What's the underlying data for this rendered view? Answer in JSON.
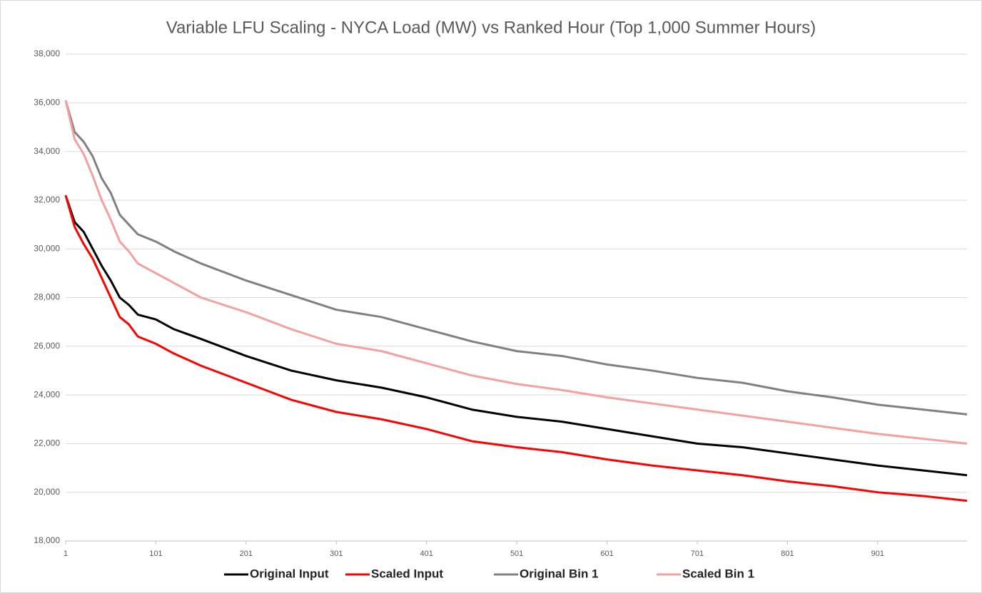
{
  "chart_data": {
    "type": "line",
    "title": "Variable LFU Scaling - NYCA Load (MW) vs Ranked Hour (Top 1,000 Summer Hours)",
    "x": [
      1,
      11,
      21,
      31,
      41,
      51,
      61,
      71,
      81,
      101,
      121,
      151,
      201,
      251,
      301,
      351,
      401,
      451,
      501,
      551,
      601,
      651,
      701,
      751,
      801,
      851,
      901,
      951,
      1000
    ],
    "series": [
      {
        "name": "Original Input",
        "color": "#000000",
        "values": [
          32200,
          31100,
          30700,
          30000,
          29300,
          28700,
          28000,
          27700,
          27300,
          27100,
          26700,
          26300,
          25600,
          25000,
          24600,
          24300,
          23900,
          23400,
          23100,
          22900,
          22600,
          22300,
          22000,
          21850,
          21600,
          21350,
          21100,
          20900,
          20700
        ]
      },
      {
        "name": "Scaled Input",
        "color": "#ff0000",
        "values": [
          32200,
          30900,
          30200,
          29600,
          28800,
          28000,
          27200,
          26900,
          26400,
          26100,
          25700,
          25200,
          24500,
          23800,
          23300,
          23000,
          22600,
          22100,
          21850,
          21650,
          21350,
          21100,
          20900,
          20700,
          20450,
          20250,
          20000,
          19850,
          19650
        ]
      },
      {
        "name": "Original Bin 1",
        "color": "#808080",
        "values": [
          36100,
          34800,
          34400,
          33800,
          32900,
          32300,
          31400,
          31000,
          30600,
          30300,
          29900,
          29400,
          28700,
          28100,
          27500,
          27200,
          26700,
          26200,
          25800,
          25600,
          25250,
          25000,
          24700,
          24500,
          24150,
          23900,
          23600,
          23400,
          23200
        ]
      },
      {
        "name": "Scaled Bin 1",
        "color": "#f4a0a0",
        "values": [
          36100,
          34500,
          33900,
          33000,
          32000,
          31200,
          30300,
          29900,
          29400,
          29000,
          28600,
          28000,
          27400,
          26700,
          26100,
          25800,
          25300,
          24800,
          24450,
          24200,
          23900,
          23650,
          23400,
          23150,
          22900,
          22650,
          22400,
          22200,
          22000
        ]
      }
    ],
    "xlim": [
      1,
      1000
    ],
    "xticks": [
      1,
      101,
      201,
      301,
      401,
      501,
      601,
      701,
      801,
      901
    ],
    "ylim": [
      18000,
      38000
    ],
    "yticks": [
      {
        "value": 18000,
        "label": "18,000"
      },
      {
        "value": 20000,
        "label": "20,000"
      },
      {
        "value": 22000,
        "label": "22,000"
      },
      {
        "value": 24000,
        "label": "24,000"
      },
      {
        "value": 26000,
        "label": "26,000"
      },
      {
        "value": 28000,
        "label": "28,000"
      },
      {
        "value": 30000,
        "label": "30,000"
      },
      {
        "value": 32000,
        "label": "32,000"
      },
      {
        "value": 34000,
        "label": "34,000"
      },
      {
        "value": 36000,
        "label": "36,000"
      },
      {
        "value": 38000,
        "label": "38,000"
      }
    ],
    "grid": true,
    "legend": "bottom"
  }
}
